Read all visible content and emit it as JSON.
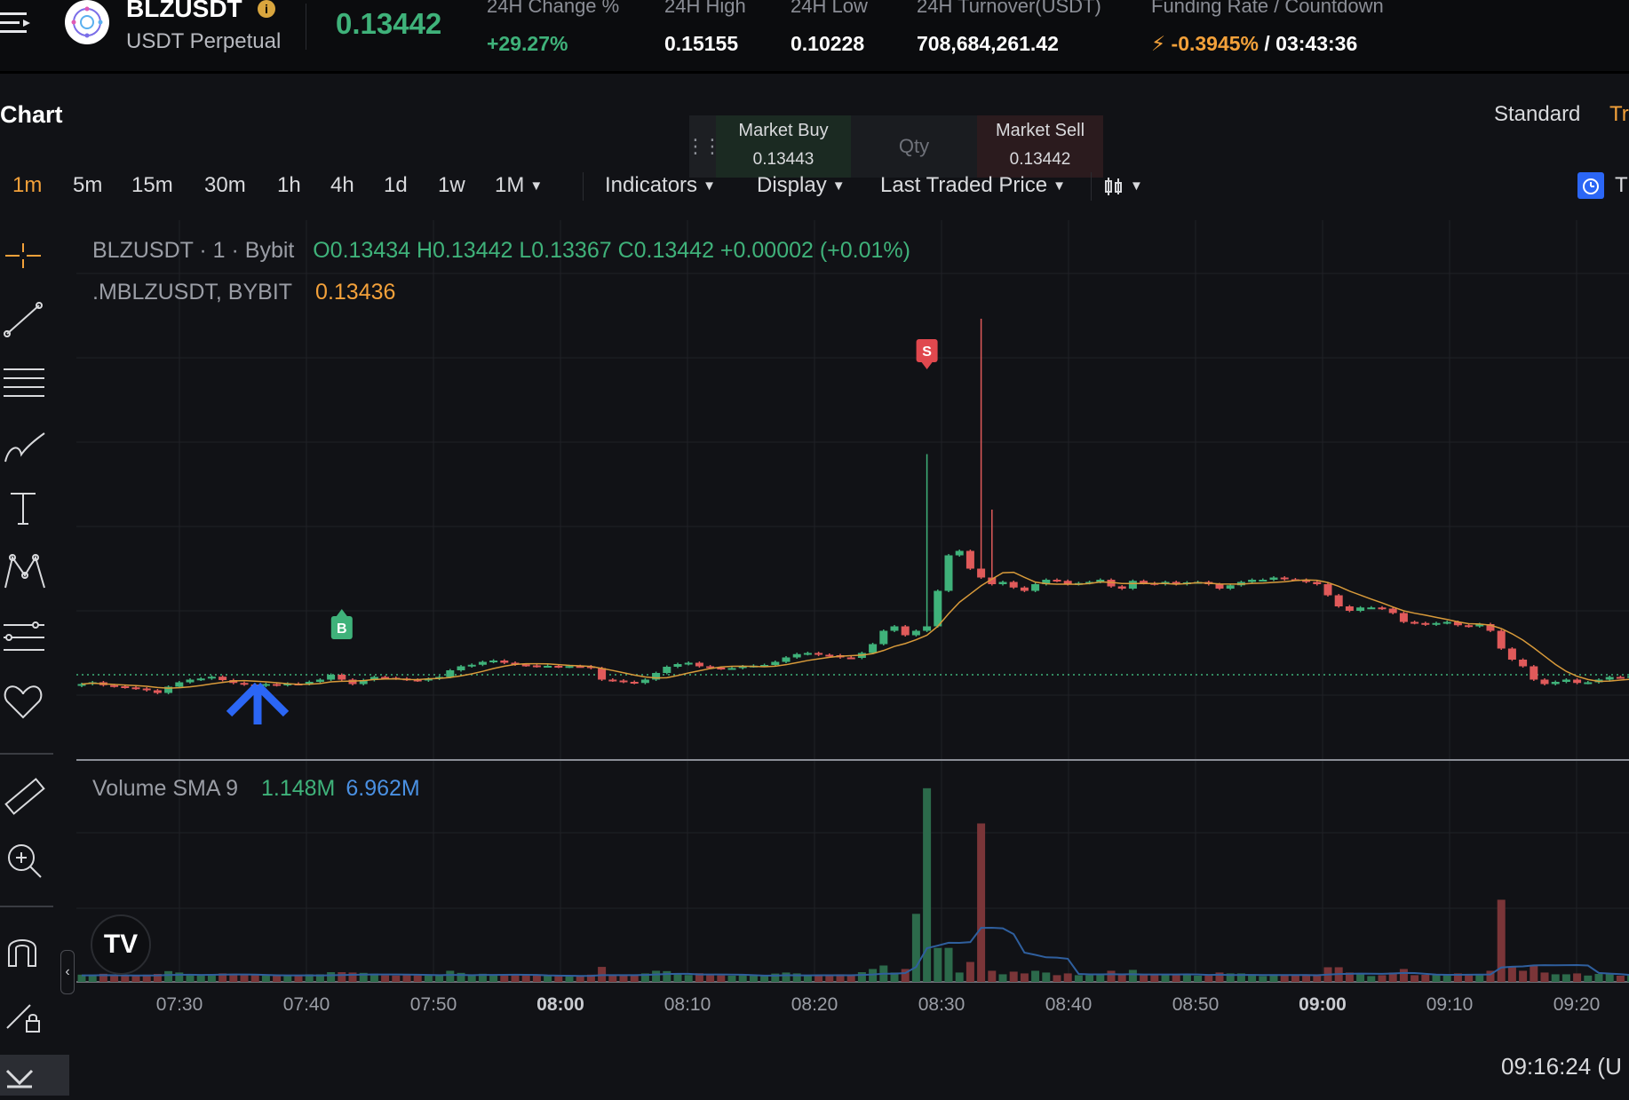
{
  "header": {
    "symbol": "BLZUSDT",
    "contract_type": "USDT Perpetual",
    "last_price": "0.13442",
    "stats": [
      {
        "label": "24H Change %",
        "value": "+29.27%"
      },
      {
        "label": "24H High",
        "value": "0.15155"
      },
      {
        "label": "24H Low",
        "value": "0.10228"
      },
      {
        "label": "24H Turnover(USDT)",
        "value": "708,684,261.42"
      }
    ],
    "funding": {
      "label": "Funding Rate / Countdown",
      "rate": "-0.3945%",
      "countdown": "/ 03:43:36"
    }
  },
  "chart_header": {
    "title": "Chart",
    "standard_tab": "Standard",
    "tradingview_tab_cut": "Tr"
  },
  "trade_panel": {
    "buy_label": "Market Buy",
    "buy_price": "0.13443",
    "qty_placeholder": "Qty",
    "sell_label": "Market Sell",
    "sell_price": "0.13442"
  },
  "toolbar": {
    "timeframes": [
      "1m",
      "5m",
      "15m",
      "30m",
      "1h",
      "4h",
      "1d",
      "1w",
      "1M"
    ],
    "active_timeframe": "1m",
    "indicators": "Indicators",
    "display": "Display",
    "price_type": "Last Traded Price",
    "right_cut": "T"
  },
  "legend": {
    "main": "BLZUSDT · 1 · Bybit",
    "ohlc": "O0.13434 H0.13442 L0.13367 C0.13442 +0.00002 (+0.01%)",
    "mark_symbol": ".MBLZUSDT, BYBIT",
    "mark_price": "0.13436",
    "volume_label": "Volume SMA 9",
    "volume_value": "1.148M",
    "sma_value": "6.962M"
  },
  "markers": {
    "sell": "S",
    "buy": "B"
  },
  "xaxis": {
    "labels": [
      "07:30",
      "07:40",
      "07:50",
      "08:00",
      "08:10",
      "08:20",
      "08:30",
      "08:40",
      "08:50",
      "09:00",
      "09:10",
      "09:20"
    ],
    "bold": [
      "08:00",
      "09:00"
    ]
  },
  "clock": "09:16:24 (U",
  "colors": {
    "up": "#3fb27a",
    "down": "#e05a5a",
    "accent": "#f3a13a",
    "blue": "#2b66f5"
  },
  "chart_data": {
    "type": "candlestick",
    "interval": "1m",
    "x_start": "07:22",
    "x_end": "09:16",
    "ylim": [
      0.1325,
      0.1533
    ],
    "last": 0.13442,
    "volume_ylim": [
      0,
      18000000
    ],
    "candles_close": [
      0.134,
      0.13408,
      0.13395,
      0.1339,
      0.13385,
      0.1338,
      0.13372,
      0.1336,
      0.13388,
      0.13408,
      0.1342,
      0.13425,
      0.13433,
      0.13418,
      0.13405,
      0.13398,
      0.13392,
      0.134,
      0.13395,
      0.13402,
      0.134,
      0.1341,
      0.1342,
      0.13442,
      0.1342,
      0.134,
      0.13418,
      0.13432,
      0.13428,
      0.13425,
      0.1342,
      0.13416,
      0.13424,
      0.13432,
      0.13462,
      0.1348,
      0.13487,
      0.135,
      0.13506,
      0.13496,
      0.13488,
      0.13484,
      0.1348,
      0.13482,
      0.13478,
      0.13481,
      0.1348,
      0.13472,
      0.1342,
      0.13416,
      0.1341,
      0.13405,
      0.1342,
      0.1345,
      0.13478,
      0.1349,
      0.13496,
      0.1348,
      0.13474,
      0.1347,
      0.13472,
      0.1348,
      0.13483,
      0.13486,
      0.135,
      0.1352,
      0.13535,
      0.1354,
      0.13532,
      0.1353,
      0.1352,
      0.13518,
      0.1354,
      0.1358,
      0.1364,
      0.1366,
      0.1362,
      0.1364,
      0.1366,
      0.1382,
      0.1398,
      0.14,
      0.1392,
      0.1388,
      0.1385,
      0.1386,
      0.13835,
      0.1382,
      0.1385,
      0.1387,
      0.13865,
      0.1385,
      0.13855,
      0.1386,
      0.1387,
      0.1384,
      0.1383,
      0.13865,
      0.13855,
      0.1385,
      0.1386,
      0.1385,
      0.13858,
      0.1386,
      0.1385,
      0.1383,
      0.13845,
      0.1386,
      0.1387,
      0.1387,
      0.1388,
      0.13872,
      0.1387,
      0.1386,
      0.1385,
      0.138,
      0.1375,
      0.1373,
      0.13745,
      0.13745,
      0.1374,
      0.1372,
      0.1368,
      0.13675,
      0.13668,
      0.13675,
      0.1368,
      0.13665,
      0.1366,
      0.1367,
      0.1364,
      0.1356,
      0.1351,
      0.1348,
      0.1342,
      0.134,
      0.1341,
      0.1342,
      0.13405,
      0.13408,
      0.1342,
      0.13432,
      0.1343,
      0.13436,
      0.13438,
      0.1344,
      0.13442
    ],
    "sma_on_candles": "orange line",
    "volume_sma": 9
  }
}
